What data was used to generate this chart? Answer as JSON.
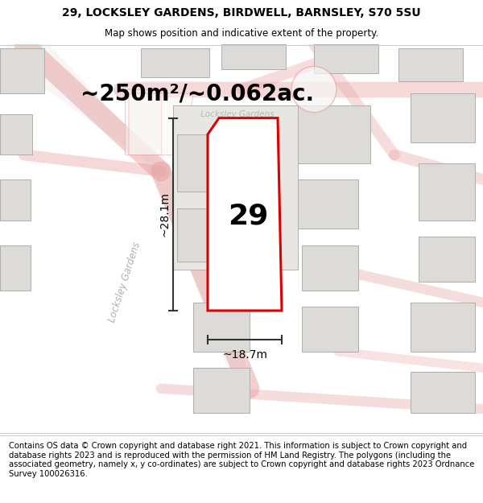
{
  "title_line1": "29, LOCKSLEY GARDENS, BIRDWELL, BARNSLEY, S70 5SU",
  "title_line2": "Map shows position and indicative extent of the property.",
  "area_text": "~250m²/~0.062ac.",
  "number_label": "29",
  "dim_vertical": "~28.1m",
  "dim_horizontal": "~18.7m",
  "street_label_diagonal": "Locksley Gardens",
  "street_label_horiz": "Locksley Gardens",
  "footer_text": "Contains OS data © Crown copyright and database right 2021. This information is subject to Crown copyright and database rights 2023 and is reproduced with the permission of HM Land Registry. The polygons (including the associated geometry, namely x, y co-ordinates) are subject to Crown copyright and database rights 2023 Ordnance Survey 100026316.",
  "bg_color": "#f0eeeb",
  "road_color": "#e8a0a0",
  "road_fill": "#f8f8f8",
  "building_fill": "#dddbd8",
  "building_edge": "#b0aeab",
  "property_fill": "#ffffff",
  "property_outline": "#dd0000",
  "dim_color": "#333333",
  "street_color": "#aaaaaa",
  "title_fontsize": 10,
  "footer_fontsize": 7.2,
  "area_fontsize": 20,
  "number_fontsize": 26
}
